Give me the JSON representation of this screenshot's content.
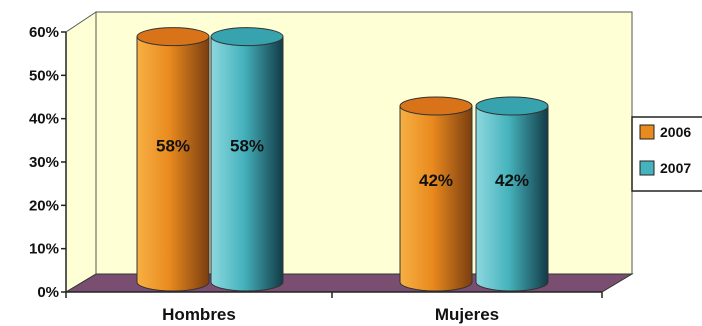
{
  "chart_data": {
    "type": "bar",
    "categories": [
      "Hombres",
      "Mujeres"
    ],
    "series": [
      {
        "name": "2006",
        "values": [
          58,
          42
        ]
      },
      {
        "name": "2007",
        "values": [
          58,
          42
        ]
      }
    ],
    "data_labels": [
      [
        "58%",
        "42%"
      ],
      [
        "58%",
        "42%"
      ]
    ],
    "ylim": [
      0,
      60
    ],
    "yticks": [
      0,
      10,
      20,
      30,
      40,
      50,
      60
    ],
    "ytick_labels": [
      "0%",
      "10%",
      "20%",
      "30%",
      "40%",
      "50%",
      "60%"
    ],
    "grid": false,
    "legend_position": "right",
    "style": "3d-cylinder",
    "colors": {
      "series": [
        "#E98A1E",
        "#45B3BD"
      ],
      "wall": "#FFFFD6",
      "floor": "#7A4E70"
    }
  }
}
